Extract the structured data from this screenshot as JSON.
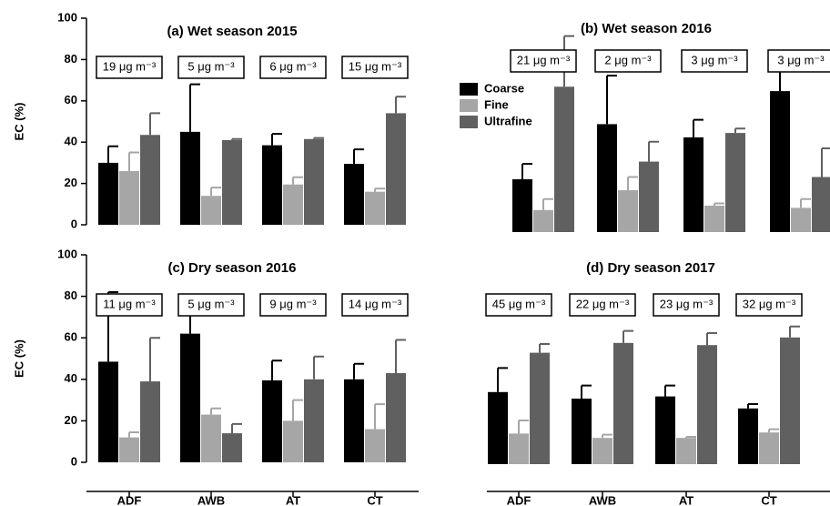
{
  "chart_data": [
    {
      "type": "bar",
      "title": "(a) Wet season 2015",
      "ylabel": "EC (%)",
      "categories": [
        null,
        null,
        null,
        null
      ],
      "annotations": [
        "19 μg m⁻³",
        "5 μg m⁻³",
        "6 μg m⁻³",
        "15 μg m⁻³"
      ],
      "series": [
        {
          "color": "#000000",
          "values": [
            30,
            45,
            38.5,
            29.5
          ],
          "errors": [
            8,
            23,
            5.5,
            7
          ]
        },
        {
          "color": "#a6a6a6",
          "values": [
            26,
            14,
            19.5,
            16
          ],
          "errors": [
            9,
            4,
            3.5,
            1.5
          ]
        },
        {
          "color": "#606060",
          "values": [
            43.5,
            41,
            41.5,
            54
          ],
          "errors": [
            10.5,
            0.5,
            0.5,
            8
          ]
        }
      ],
      "ylim": [
        0,
        100
      ],
      "yticks": [
        0,
        20,
        40,
        60,
        80,
        100
      ]
    },
    {
      "type": "bar",
      "title": "(b) Wet  season 2016",
      "categories": [
        null,
        null,
        null,
        null
      ],
      "annotations": [
        "21 μg m⁻³",
        "2 μg m⁻³",
        "3 μg m⁻³",
        "3 μg m⁻³"
      ],
      "series": [
        {
          "name": "Coarse",
          "color": "#000000",
          "values": [
            24,
            49,
            43,
            64
          ],
          "errors": [
            7,
            22,
            8,
            13
          ]
        },
        {
          "name": "Fine",
          "color": "#a6a6a6",
          "values": [
            10,
            19,
            12,
            11
          ],
          "errors": [
            5,
            6,
            1,
            4
          ]
        },
        {
          "name": "Ultrafine",
          "color": "#606060",
          "values": [
            66,
            32,
            45,
            25
          ],
          "errors": [
            23,
            9,
            2,
            13
          ]
        }
      ],
      "ylim": [
        0,
        100
      ],
      "legend": "upper left"
    },
    {
      "type": "bar",
      "title": "(c) Dry season 2016",
      "ylabel": "EC (%)",
      "categories": [
        "ADF",
        "AWB",
        "AT",
        "CT"
      ],
      "annotations": [
        "11 μg m⁻³",
        "5 μg m⁻³",
        "9 μg m⁻³",
        "14 μg m⁻³"
      ],
      "series": [
        {
          "color": "#000000",
          "values": [
            48.5,
            62,
            39.5,
            40
          ],
          "errors": [
            33.5,
            15,
            9.5,
            7.5
          ]
        },
        {
          "color": "#a6a6a6",
          "values": [
            12,
            23,
            20,
            16
          ],
          "errors": [
            2.5,
            3,
            10,
            12
          ]
        },
        {
          "color": "#606060",
          "values": [
            39,
            14,
            40,
            43
          ],
          "errors": [
            21,
            4.5,
            11,
            16
          ]
        }
      ],
      "ylim": [
        0,
        100
      ],
      "yticks": [
        0,
        20,
        40,
        60,
        80,
        100
      ]
    },
    {
      "type": "bar",
      "title": "(d) Dry season 2017",
      "categories": [
        "ADF",
        "AWB",
        "AT",
        "CT"
      ],
      "annotations": [
        "45 μg m⁻³",
        "22 μg m⁻³",
        "23 μg m⁻³",
        "32 μg m⁻³"
      ],
      "series": [
        {
          "color": "#000000",
          "values": [
            33,
            30,
            31,
            25.5
          ],
          "errors": [
            11,
            6,
            5,
            2
          ]
        },
        {
          "color": "#a6a6a6",
          "values": [
            14,
            12,
            12,
            14.5
          ],
          "errors": [
            6,
            1.5,
            0.5,
            1.5
          ]
        },
        {
          "color": "#606060",
          "values": [
            51,
            55.5,
            54.5,
            58
          ],
          "errors": [
            4,
            5.5,
            5.5,
            5
          ]
        }
      ],
      "ylim": [
        0,
        100
      ]
    }
  ]
}
